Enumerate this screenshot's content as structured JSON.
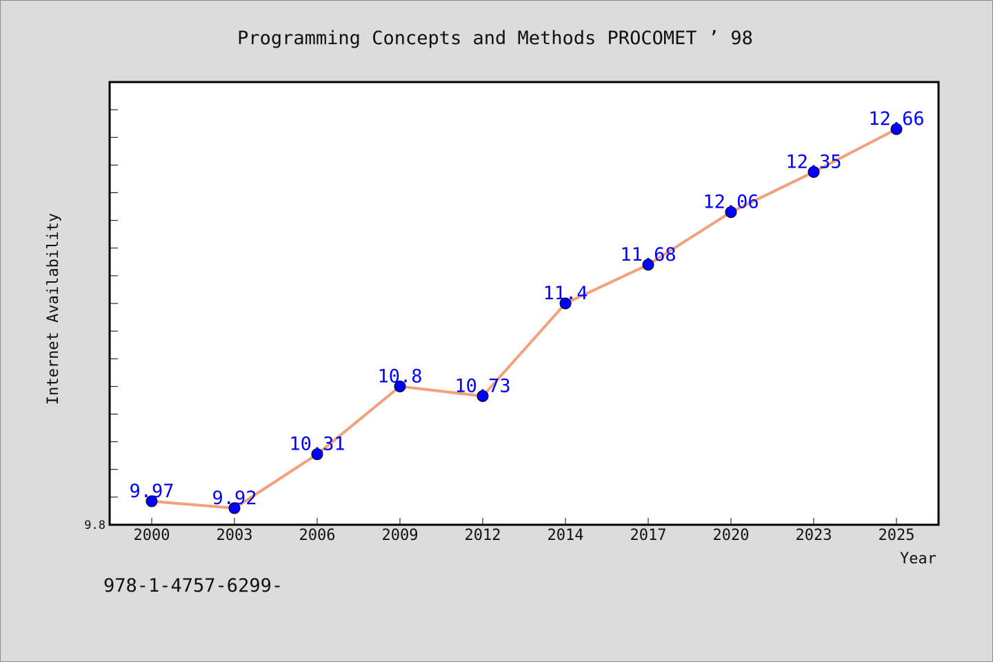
{
  "chart_data": {
    "type": "line",
    "title": "Programming Concepts and Methods PROCOMET ’ 98",
    "xlabel": "Year",
    "ylabel": "Internet Availability",
    "categories": [
      "2000",
      "2003",
      "2006",
      "2009",
      "2012",
      "2014",
      "2017",
      "2020",
      "2023",
      "2025"
    ],
    "values": [
      9.97,
      9.92,
      10.31,
      10.8,
      10.73,
      11.4,
      11.68,
      12.06,
      12.35,
      12.66
    ],
    "data_labels": [
      "9.97",
      "9.92",
      "10.31",
      "10.8",
      "10.73",
      "11.4",
      "11.68",
      "12.06",
      "12.35",
      "12.66"
    ],
    "ylim": [
      9.8,
      13.0
    ],
    "y_tick_labels": [
      "9.8"
    ],
    "grid": false,
    "colors": {
      "line": "#f4a07a",
      "marker": "#0000ff",
      "data_label": "#0000ff",
      "plot_background": "#ffffff",
      "figure_background": "#dcdcdc"
    }
  },
  "footer": {
    "isbn": "978-1-4757-6299-"
  }
}
